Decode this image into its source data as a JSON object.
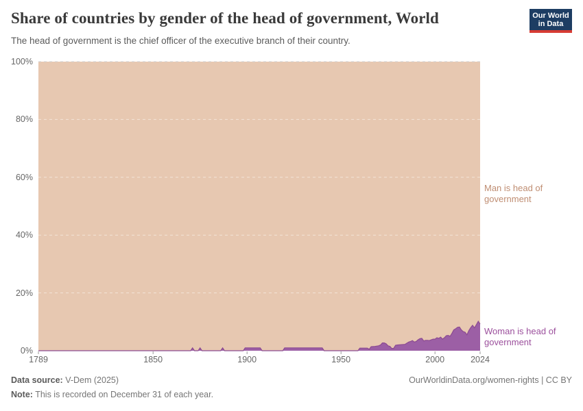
{
  "header": {
    "title": "Share of countries by gender of the head of government, World",
    "subtitle": "The head of government is the chief officer of the executive branch of their country.",
    "logo": {
      "line1": "Our World",
      "line2": "in Data"
    }
  },
  "labels": {
    "man": "Man is head of government",
    "woman": "Woman is head of government"
  },
  "chart_data": {
    "type": "area",
    "stacked": true,
    "title": "Share of countries by gender of the head of government, World",
    "unit": "%",
    "x_range": [
      1789,
      2024
    ],
    "y_range": [
      0,
      100
    ],
    "x_ticks": [
      1789,
      1850,
      1900,
      1950,
      2000,
      2024
    ],
    "y_ticks": [
      0,
      20,
      40,
      60,
      80,
      100
    ],
    "y_tick_suffix": "%",
    "grid": "dashed horizontal",
    "legend_position": "right-edge series labels",
    "series": [
      {
        "name": "Woman is head of government",
        "color": "#9c5fa5",
        "points": [
          [
            1789,
            0
          ],
          [
            1870,
            0
          ],
          [
            1871,
            1
          ],
          [
            1872,
            0
          ],
          [
            1874,
            0
          ],
          [
            1875,
            1
          ],
          [
            1876,
            0
          ],
          [
            1886,
            0
          ],
          [
            1887,
            1
          ],
          [
            1888,
            0
          ],
          [
            1898,
            0
          ],
          [
            1899,
            1
          ],
          [
            1907,
            1
          ],
          [
            1908,
            0
          ],
          [
            1919,
            0
          ],
          [
            1920,
            1
          ],
          [
            1940,
            1
          ],
          [
            1941,
            0
          ],
          [
            1959,
            0
          ],
          [
            1960,
            0.9
          ],
          [
            1964,
            0.9
          ],
          [
            1965,
            0.5
          ],
          [
            1966,
            1.4
          ],
          [
            1968,
            1.5
          ],
          [
            1970,
            1.7
          ],
          [
            1971,
            2
          ],
          [
            1972,
            2.7
          ],
          [
            1973,
            2.7
          ],
          [
            1974,
            2.4
          ],
          [
            1975,
            1.7
          ],
          [
            1976,
            1.5
          ],
          [
            1977,
            0.8
          ],
          [
            1978,
            0.8
          ],
          [
            1979,
            1.9
          ],
          [
            1980,
            2
          ],
          [
            1984,
            2.2
          ],
          [
            1985,
            2.6
          ],
          [
            1986,
            3
          ],
          [
            1987,
            3.2
          ],
          [
            1988,
            3.5
          ],
          [
            1989,
            3
          ],
          [
            1990,
            3.2
          ],
          [
            1991,
            3.8
          ],
          [
            1992,
            4.2
          ],
          [
            1993,
            4.3
          ],
          [
            1994,
            3.4
          ],
          [
            1995,
            3.6
          ],
          [
            1996,
            3.6
          ],
          [
            1997,
            3.5
          ],
          [
            1998,
            3.8
          ],
          [
            1999,
            4
          ],
          [
            2000,
            4
          ],
          [
            2001,
            4.5
          ],
          [
            2002,
            4.3
          ],
          [
            2003,
            4.7
          ],
          [
            2004,
            4
          ],
          [
            2005,
            4.5
          ],
          [
            2006,
            5.2
          ],
          [
            2007,
            5.3
          ],
          [
            2008,
            5
          ],
          [
            2009,
            6
          ],
          [
            2010,
            7.2
          ],
          [
            2011,
            7.6
          ],
          [
            2012,
            8.1
          ],
          [
            2013,
            8.2
          ],
          [
            2014,
            7.2
          ],
          [
            2015,
            6.6
          ],
          [
            2016,
            6.4
          ],
          [
            2017,
            5.5
          ],
          [
            2018,
            7
          ],
          [
            2019,
            8
          ],
          [
            2020,
            8.8
          ],
          [
            2021,
            7.9
          ],
          [
            2022,
            9
          ],
          [
            2023,
            10.2
          ],
          [
            2024,
            9.2
          ]
        ]
      },
      {
        "name": "Man is head of government",
        "color": "#e7c8b1",
        "values": "complement: 100 minus woman share (stacked to 100%)"
      }
    ]
  },
  "footer": {
    "source_label": "Data source:",
    "source_value": " V-Dem (2025)",
    "note_label": "Note:",
    "note_value": " This is recorded on December 31 of each year.",
    "url": "OurWorldinData.org/women-rights | CC BY"
  },
  "colors": {
    "man_area": "#e7c8b1",
    "woman_area": "#9c5fa5",
    "woman_line": "#8b4a92",
    "man_label": "#bf8d72",
    "woman_label": "#9b4f9c",
    "axis_text": "#666666",
    "grid_top": "#cfcfcf",
    "grid_inner": "rgba(255,255,255,0.5)",
    "tick": "#999999",
    "title": "#3a3a3a",
    "subtitle": "#5b5b5b",
    "footer_bold": "#5b5b5b",
    "footer_text": "#757575",
    "logo_bg": "#1d3d63",
    "logo_red": "#d73c34"
  }
}
